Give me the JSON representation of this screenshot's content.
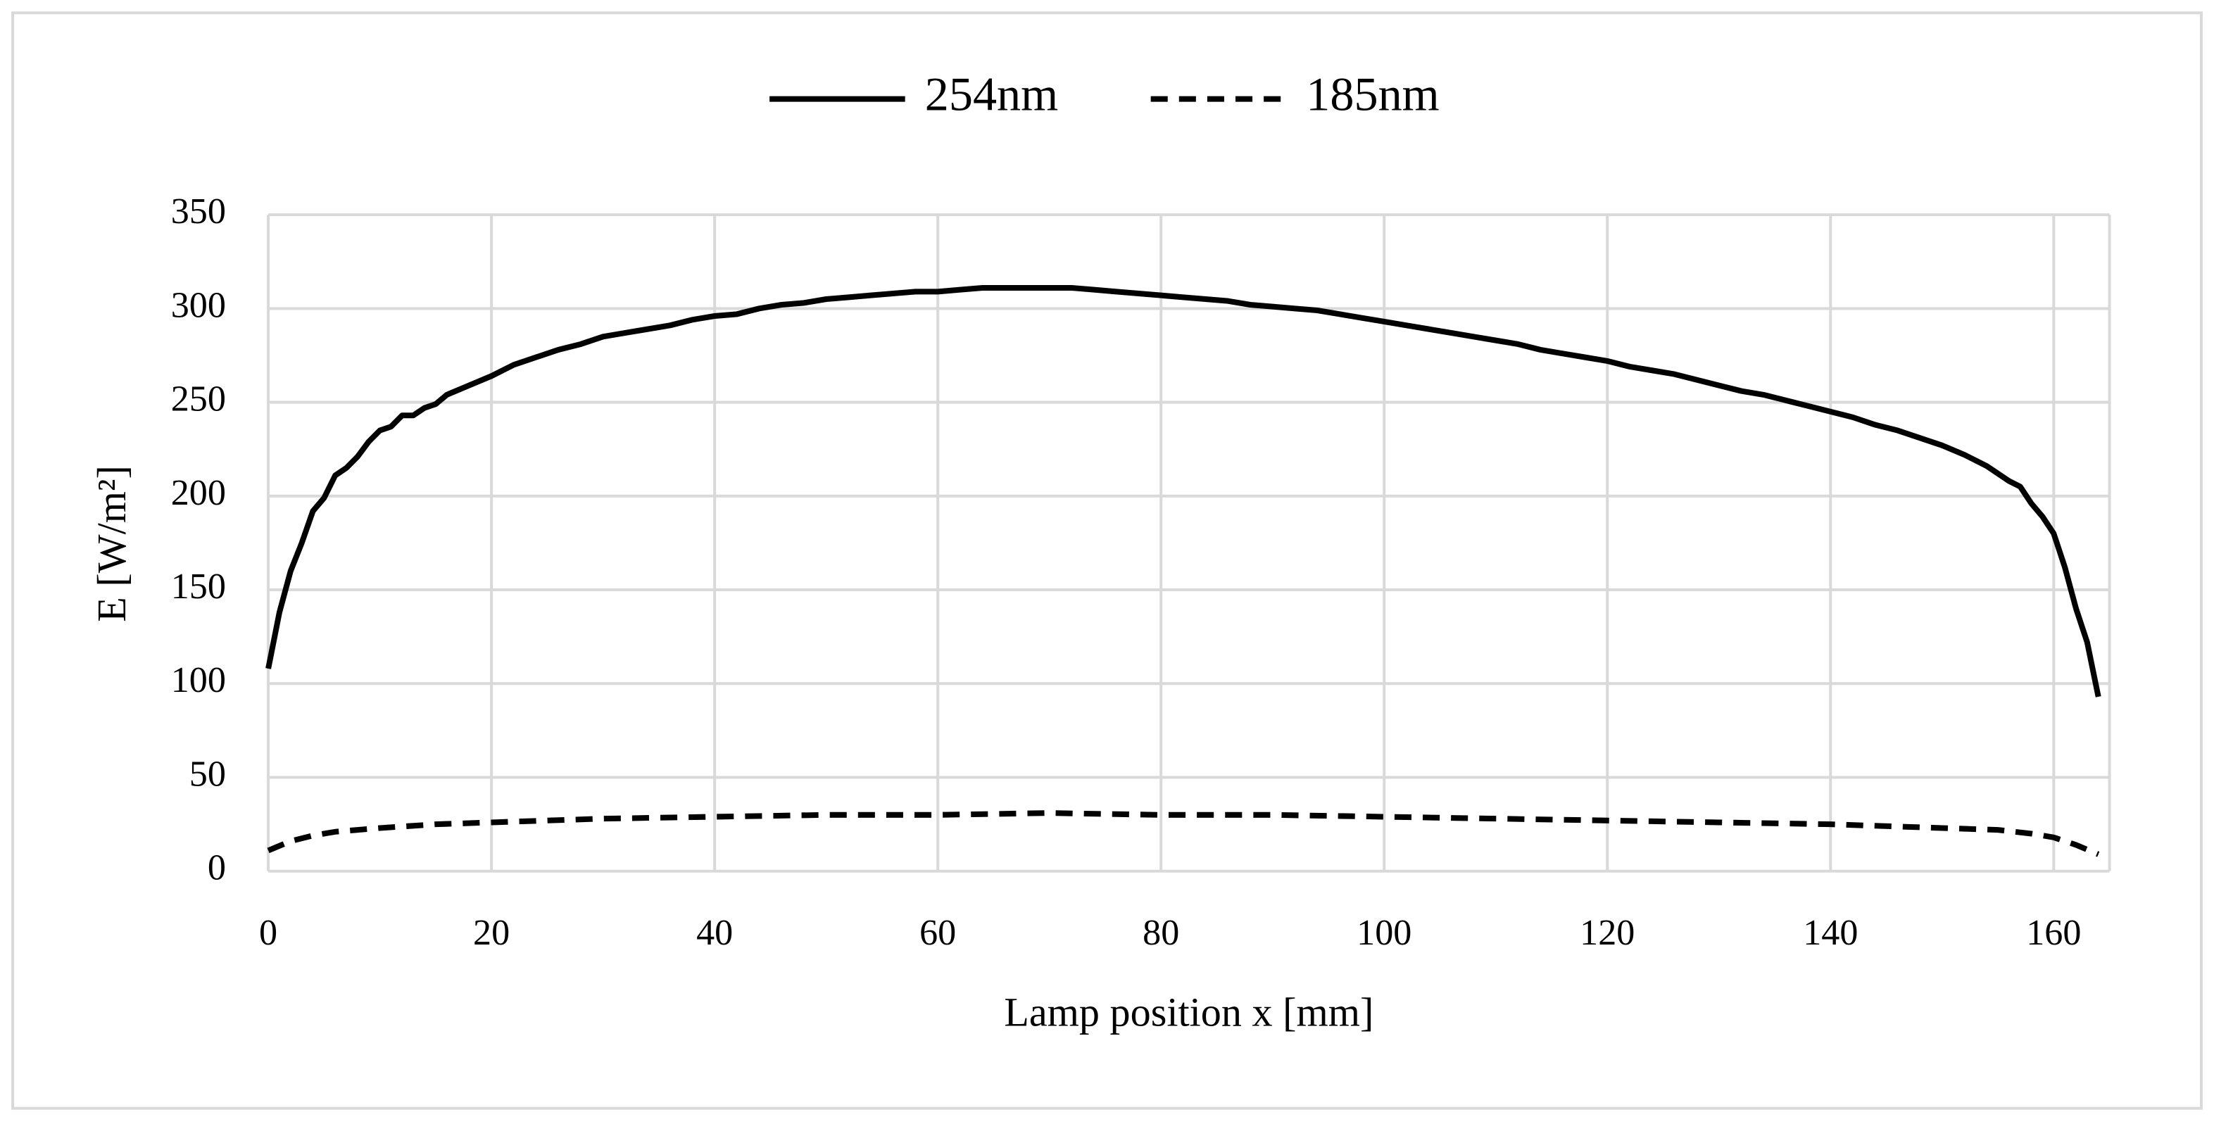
{
  "chart_data": {
    "type": "line",
    "x_label": "Lamp position x [mm]",
    "y_label": "E [W/m²]",
    "xlim": [
      0,
      165
    ],
    "xticks": [
      0,
      20,
      40,
      60,
      80,
      100,
      120,
      140,
      160
    ],
    "ylim": [
      0,
      350
    ],
    "yticks": [
      0,
      50,
      100,
      150,
      200,
      250,
      300,
      350
    ],
    "grid": true,
    "legend": "top",
    "series": [
      {
        "name": "254nm",
        "color": "#000000",
        "dash": "solid",
        "x": [
          0,
          1,
          2,
          3,
          4,
          5,
          6,
          7,
          8,
          9,
          10,
          11,
          12,
          13,
          14,
          15,
          16,
          18,
          20,
          22,
          24,
          26,
          28,
          30,
          32,
          34,
          36,
          38,
          40,
          42,
          44,
          46,
          48,
          50,
          52,
          54,
          56,
          58,
          60,
          62,
          64,
          66,
          68,
          70,
          72,
          74,
          76,
          78,
          80,
          82,
          84,
          86,
          88,
          90,
          92,
          94,
          96,
          98,
          100,
          102,
          104,
          106,
          108,
          110,
          112,
          114,
          116,
          118,
          120,
          122,
          124,
          126,
          128,
          130,
          132,
          134,
          136,
          138,
          140,
          142,
          144,
          146,
          148,
          150,
          152,
          154,
          156,
          157,
          158,
          159,
          160,
          161,
          162,
          163,
          164
        ],
        "values": [
          108,
          138,
          160,
          175,
          192,
          199,
          211,
          215,
          221,
          229,
          235,
          237,
          243,
          243,
          247,
          249,
          254,
          259,
          264,
          270,
          274,
          278,
          281,
          285,
          287,
          289,
          291,
          294,
          296,
          297,
          300,
          302,
          303,
          305,
          306,
          307,
          308,
          309,
          309,
          310,
          311,
          311,
          311,
          311,
          311,
          310,
          309,
          308,
          307,
          306,
          305,
          304,
          302,
          301,
          300,
          299,
          297,
          295,
          293,
          291,
          289,
          287,
          285,
          283,
          281,
          278,
          276,
          274,
          272,
          269,
          267,
          265,
          262,
          259,
          256,
          254,
          251,
          248,
          245,
          242,
          238,
          235,
          231,
          227,
          222,
          216,
          208,
          205,
          196,
          189,
          180,
          162,
          140,
          122,
          93
        ]
      },
      {
        "name": "185nm",
        "color": "#000000",
        "dash": "dashed",
        "x": [
          0,
          2,
          4,
          6,
          10,
          15,
          20,
          30,
          40,
          50,
          60,
          70,
          80,
          90,
          100,
          110,
          120,
          130,
          140,
          150,
          155,
          158,
          160,
          162,
          164
        ],
        "values": [
          11,
          16,
          19,
          21,
          23,
          25,
          26,
          28,
          29,
          30,
          30,
          31,
          30,
          30,
          29,
          28,
          27,
          26,
          25,
          23,
          22,
          20,
          18,
          14,
          9
        ]
      }
    ]
  }
}
